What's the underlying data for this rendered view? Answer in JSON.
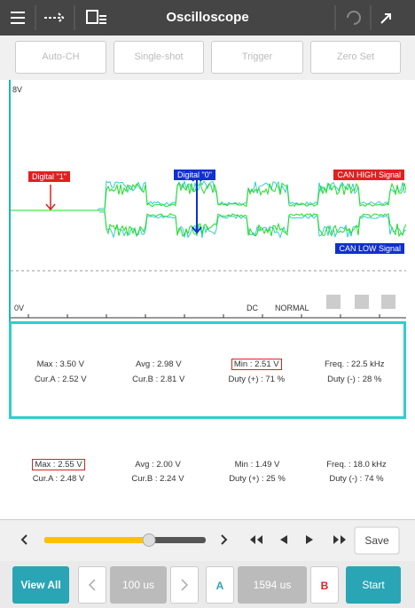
{
  "header": {
    "title": "Oscilloscope"
  },
  "toolbar": {
    "buttons": [
      "Auto-CH",
      "Single-shot",
      "Trigger",
      "Zero Set"
    ]
  },
  "scope": {
    "top_label": "8V",
    "bottom_label": "0V",
    "annotations": {
      "digital_1": "Digital \"1\"",
      "digital_0": "Digital \"0\"",
      "can_high": "CAN HIGH Signal",
      "can_low": "CAN LOW Signal"
    },
    "coupling": "DC",
    "mode": "NORMAL"
  },
  "measurements": [
    {
      "row1": [
        "Max : 3.50 V",
        "Avg : 2.98 V",
        "Min : 2.51 V",
        "Freq. : 22.5 kHz"
      ],
      "row2": [
        "Cur.A : 2.52 V",
        "Cur.B : 2.81 V",
        "Duty (+) : 71 %",
        "Duty (-) : 28 %"
      ]
    },
    {
      "row1": [
        "Max : 2.55 V",
        "Avg : 2.00 V",
        "Min : 1.49 V",
        "Freq. : 18.0 kHz"
      ],
      "row2": [
        "Cur.A : 2.48 V",
        "Cur.B : 2.24 V",
        "Duty (+) : 25 %",
        "Duty (-) : 74 %"
      ]
    }
  ],
  "controls": {
    "save": "Save"
  },
  "footer": {
    "view_all": "View All",
    "time_div": "100 us",
    "cursor_a": "A",
    "cursor_time": "1594 us",
    "cursor_b": "B",
    "start": "Start"
  }
}
